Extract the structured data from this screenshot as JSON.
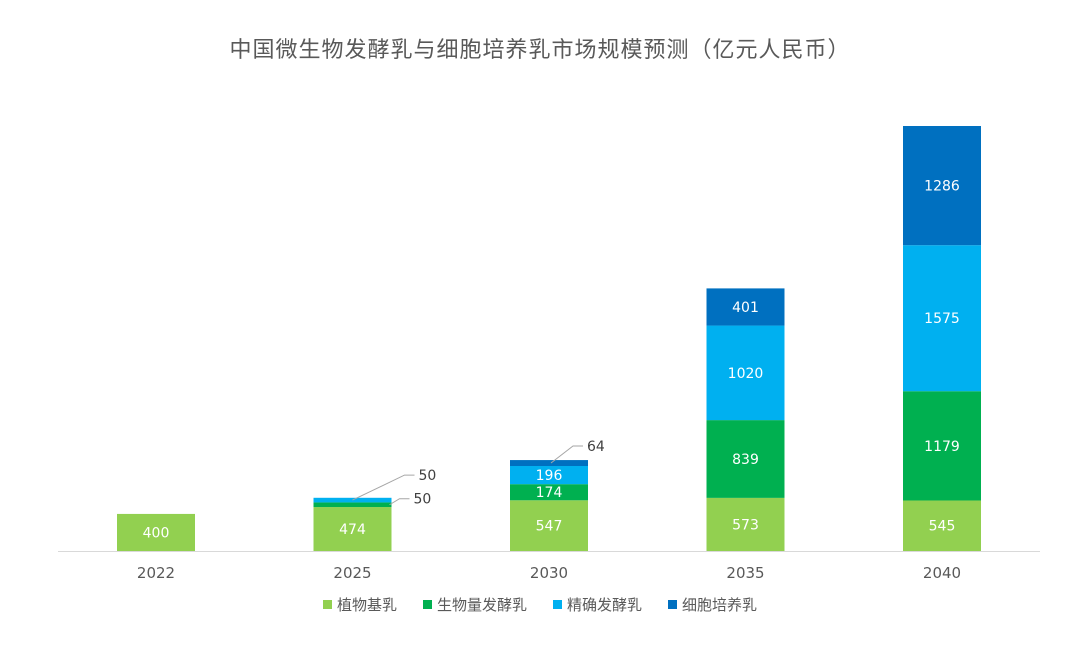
{
  "chart_data": {
    "type": "bar",
    "stacked": true,
    "title": "中国微生物发酵乳与细胞培养乳市场规模预测（亿元人民币）",
    "xlabel": "",
    "ylabel": "",
    "categories": [
      "2022",
      "2025",
      "2030",
      "2035",
      "2040"
    ],
    "series": [
      {
        "name": "植物基乳",
        "color": "#92D050",
        "values": [
          400,
          474,
          547,
          573,
          545
        ]
      },
      {
        "name": "生物量发酵乳",
        "color": "#00B050",
        "values": [
          0,
          50,
          174,
          839,
          1179
        ]
      },
      {
        "name": "精确发酵乳",
        "color": "#00B0F0",
        "values": [
          0,
          50,
          196,
          1020,
          1575
        ]
      },
      {
        "name": "细胞培养乳",
        "color": "#0070C0",
        "values": [
          0,
          0,
          64,
          401,
          1286
        ]
      }
    ],
    "ylim": [
      0,
      4585
    ],
    "grid": false,
    "legend": "bottom"
  }
}
